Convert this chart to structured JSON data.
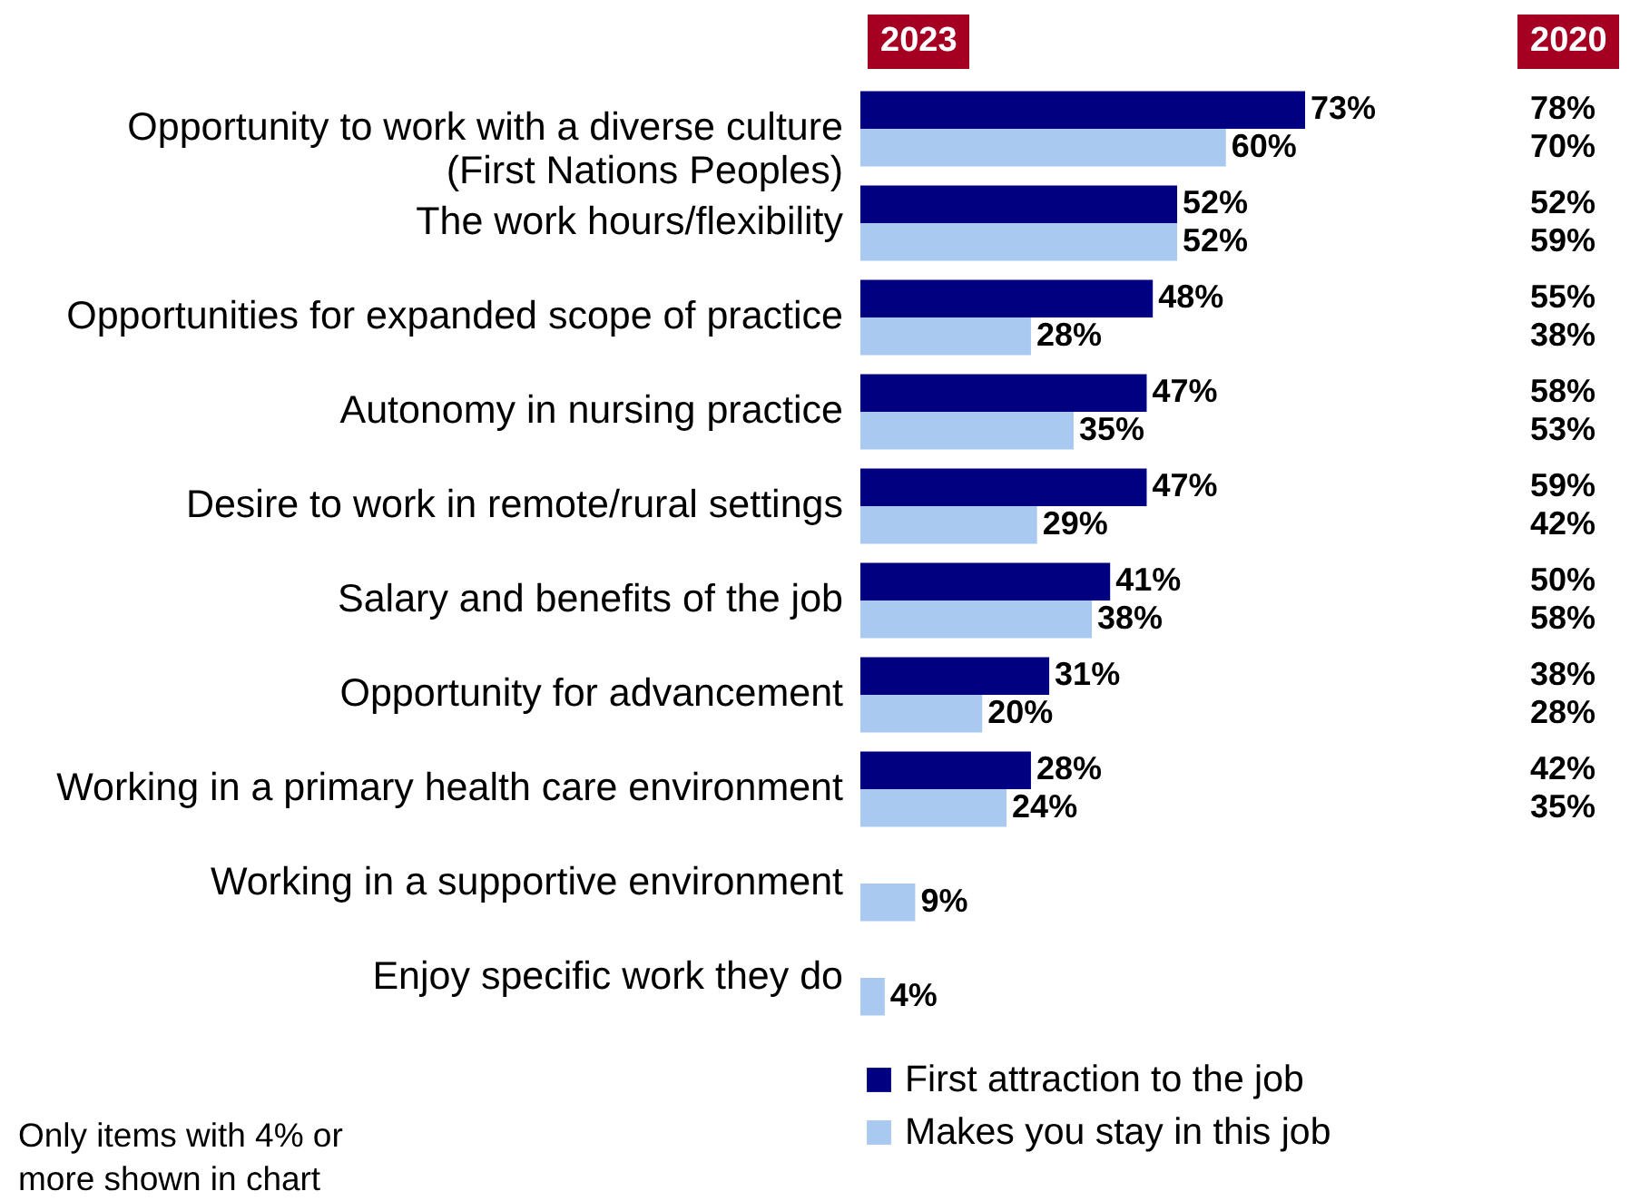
{
  "chart_data": {
    "type": "bar",
    "orientation": "horizontal",
    "legend": "bottom",
    "categories": [
      "Opportunity to work with a diverse culture\n(First Nations Peoples)",
      "The work hours/flexibility",
      "Opportunities for expanded scope of practice",
      "Autonomy in nursing practice",
      "Desire to work in remote/rural settings",
      "Salary and benefits of the job",
      "Opportunity for advancement",
      "Working in a primary health care environment",
      "Working in a supportive environment",
      "Enjoy specific work they do"
    ],
    "series": [
      {
        "name": "First attraction to the job",
        "color": "#000080",
        "values": [
          73,
          52,
          48,
          47,
          47,
          41,
          31,
          28,
          null,
          null
        ],
        "value_labels": [
          "73%",
          "52%",
          "48%",
          "47%",
          "47%",
          "41%",
          "31%",
          "28%",
          null,
          null
        ]
      },
      {
        "name": "Makes you stay in this job",
        "color": "#a9c9f0",
        "values": [
          60,
          52,
          28,
          35,
          29,
          38,
          20,
          24,
          9,
          4
        ],
        "value_labels": [
          "60%",
          "52%",
          "28%",
          "35%",
          "29%",
          "38%",
          "20%",
          "24%",
          "9%",
          "4%"
        ]
      }
    ],
    "annotations": [
      "2023",
      "2020",
      "78%",
      "70%",
      "52%",
      "59%",
      "55%",
      "38%",
      "58%",
      "53%",
      "59%",
      "42%",
      "50%",
      "58%",
      "38%",
      "28%",
      "42%",
      "35%",
      "Only items with 4% or more shown in chart"
    ]
  }
}
